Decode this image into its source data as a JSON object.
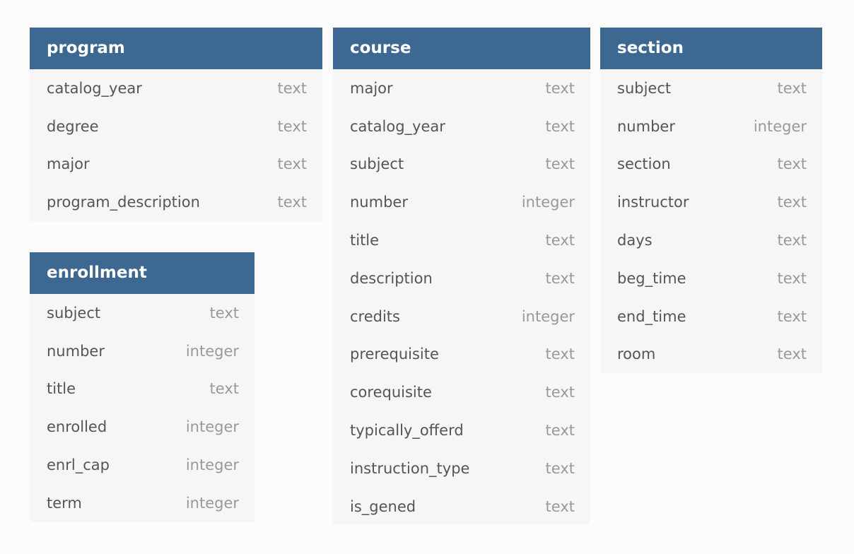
{
  "tables": {
    "program": {
      "name": "program",
      "fields": [
        {
          "name": "catalog_year",
          "type": "text"
        },
        {
          "name": "degree",
          "type": "text"
        },
        {
          "name": "major",
          "type": "text"
        },
        {
          "name": "program_description",
          "type": "text"
        }
      ]
    },
    "course": {
      "name": "course",
      "fields": [
        {
          "name": "major",
          "type": "text"
        },
        {
          "name": "catalog_year",
          "type": "text"
        },
        {
          "name": "subject",
          "type": "text"
        },
        {
          "name": "number",
          "type": "integer"
        },
        {
          "name": "title",
          "type": "text"
        },
        {
          "name": "description",
          "type": "text"
        },
        {
          "name": "credits",
          "type": "integer"
        },
        {
          "name": "prerequisite",
          "type": "text"
        },
        {
          "name": "corequisite",
          "type": "text"
        },
        {
          "name": "typically_offerd",
          "type": "text"
        },
        {
          "name": "instruction_type",
          "type": "text"
        },
        {
          "name": "is_gened",
          "type": "text"
        }
      ]
    },
    "section": {
      "name": "section",
      "fields": [
        {
          "name": "subject",
          "type": "text"
        },
        {
          "name": "number",
          "type": "integer"
        },
        {
          "name": "section",
          "type": "text"
        },
        {
          "name": "instructor",
          "type": "text"
        },
        {
          "name": "days",
          "type": "text"
        },
        {
          "name": "beg_time",
          "type": "text"
        },
        {
          "name": "end_time",
          "type": "text"
        },
        {
          "name": "room",
          "type": "text"
        }
      ]
    },
    "enrollment": {
      "name": "enrollment",
      "fields": [
        {
          "name": "subject",
          "type": "text"
        },
        {
          "name": "number",
          "type": "integer"
        },
        {
          "name": "title",
          "type": "text"
        },
        {
          "name": "enrolled",
          "type": "integer"
        },
        {
          "name": "enrl_cap",
          "type": "integer"
        },
        {
          "name": "term",
          "type": "integer"
        }
      ]
    }
  },
  "colors": {
    "header_bg": "#3d6891",
    "header_text": "#ffffff",
    "body_bg": "#f6f6f6",
    "field_name": "#555555",
    "field_type": "#999999"
  }
}
